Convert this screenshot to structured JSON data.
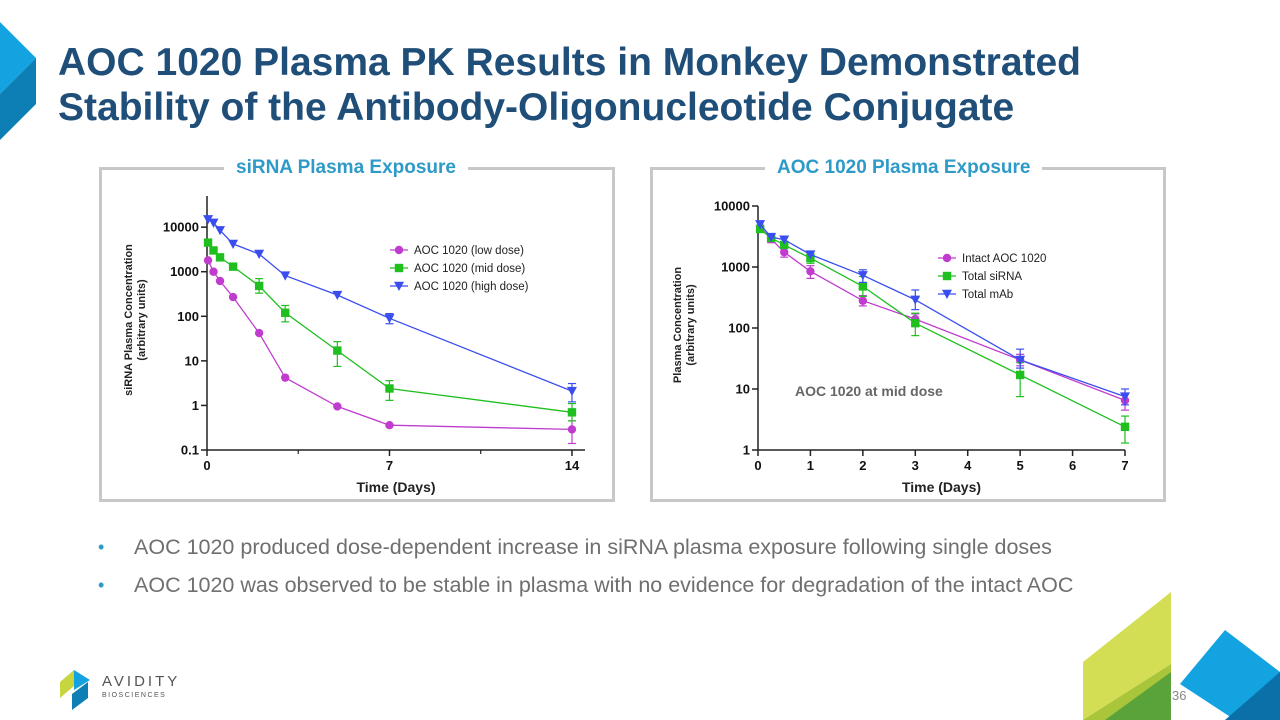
{
  "title": "AOC 1020 Plasma PK Results in Monkey Demonstrated Stability of the Antibody-Oligonucleotide Conjugate",
  "colors": {
    "title": "#1f4e79",
    "heading": "#2e9ac7",
    "low": "#c03ccf",
    "mid": "#1fbf1f",
    "high": "#3a4ef0",
    "accent_blue": "#12a3e0",
    "accent_green": "#c7d53e"
  },
  "chart_data": [
    {
      "type": "line",
      "title": "siRNA Plasma Exposure",
      "xlabel": "Time (Days)",
      "ylabel": "siRNA Plasma Concentration\n(arbitrary units)",
      "yscale": "log",
      "xlim": [
        0,
        14.5
      ],
      "ylim": [
        0.1,
        50000
      ],
      "xticks": [
        {
          "v": 0,
          "label": "0"
        },
        {
          "v": 7,
          "label": "7"
        },
        {
          "v": 14,
          "label": "14"
        }
      ],
      "xminor": [
        3.5,
        10.5
      ],
      "yticks": [
        {
          "v": 0.1,
          "label": "0.1"
        },
        {
          "v": 1,
          "label": "1"
        },
        {
          "v": 10,
          "label": "10"
        },
        {
          "v": 100,
          "label": "100"
        },
        {
          "v": 1000,
          "label": "1000"
        },
        {
          "v": 10000,
          "label": "10000"
        }
      ],
      "legend_position": "top-right",
      "series": [
        {
          "name": "AOC 1020 (low dose)",
          "marker": "circle",
          "color": "#c03ccf",
          "x": [
            0.04,
            0.25,
            0.5,
            1,
            2,
            3,
            5,
            7,
            14
          ],
          "y": [
            1800,
            1000,
            620,
            270,
            42,
            4.2,
            0.95,
            0.36,
            0.29
          ],
          "err": [
            null,
            null,
            null,
            null,
            null,
            null,
            null,
            null,
            [
              0.14,
              0.45
            ]
          ]
        },
        {
          "name": "AOC 1020 (mid dose)",
          "marker": "square",
          "color": "#1fbf1f",
          "x": [
            0.04,
            0.25,
            0.5,
            1,
            2,
            3,
            5,
            7,
            14
          ],
          "y": [
            4500,
            3000,
            2100,
            1300,
            480,
            120,
            17,
            2.4,
            0.7
          ],
          "err": [
            null,
            null,
            null,
            null,
            [
              330,
              700
            ],
            [
              75,
              175
            ],
            [
              7.5,
              27
            ],
            [
              1.3,
              3.6
            ],
            [
              0.45,
              1.1
            ]
          ]
        },
        {
          "name": "AOC 1020 (high dose)",
          "marker": "triangle-down",
          "color": "#3a4ef0",
          "x": [
            0.04,
            0.25,
            0.5,
            1,
            2,
            3,
            5,
            7,
            14
          ],
          "y": [
            15000,
            12500,
            8500,
            4200,
            2500,
            820,
            300,
            90,
            2.1
          ],
          "err": [
            null,
            null,
            null,
            null,
            null,
            null,
            null,
            [
              68,
              115
            ],
            [
              1.2,
              3.1
            ]
          ]
        }
      ]
    },
    {
      "type": "line",
      "title": "AOC 1020 Plasma Exposure",
      "xlabel": "Time (Days)",
      "ylabel": "Plasma Concentration\n(arbitrary units)",
      "yscale": "log",
      "xlim": [
        0,
        7
      ],
      "ylim": [
        1,
        10000
      ],
      "xticks": [
        {
          "v": 0,
          "label": "0"
        },
        {
          "v": 1,
          "label": "1"
        },
        {
          "v": 2,
          "label": "2"
        },
        {
          "v": 3,
          "label": "3"
        },
        {
          "v": 4,
          "label": "4"
        },
        {
          "v": 5,
          "label": "5"
        },
        {
          "v": 6,
          "label": "6"
        },
        {
          "v": 7,
          "label": "7"
        }
      ],
      "xminor": [],
      "yticks": [
        {
          "v": 1,
          "label": "1"
        },
        {
          "v": 10,
          "label": "10"
        },
        {
          "v": 100,
          "label": "100"
        },
        {
          "v": 1000,
          "label": "1000"
        },
        {
          "v": 10000,
          "label": "10000"
        }
      ],
      "legend_position": "top-right",
      "annotation": "AOC 1020 at mid dose",
      "series": [
        {
          "name": "Intact AOC 1020",
          "marker": "circle",
          "color": "#c03ccf",
          "x": [
            0.04,
            0.25,
            0.5,
            1,
            2,
            3,
            5,
            7
          ],
          "y": [
            4500,
            2900,
            1750,
            850,
            280,
            140,
            30,
            6.5
          ],
          "err": [
            null,
            [
              2500,
              3300
            ],
            [
              1450,
              2100
            ],
            [
              650,
              1050
            ],
            [
              230,
              340
            ],
            [
              115,
              170
            ],
            [
              24,
              37
            ],
            [
              4.5,
              8.5
            ]
          ]
        },
        {
          "name": "Total siRNA",
          "marker": "square",
          "color": "#1fbf1f",
          "x": [
            0.04,
            0.25,
            0.5,
            1,
            2,
            3,
            5,
            7
          ],
          "y": [
            4200,
            3000,
            2300,
            1400,
            480,
            120,
            17,
            2.4
          ],
          "err": [
            null,
            null,
            null,
            [
              1150,
              1650
            ],
            [
              330,
              700
            ],
            [
              75,
              175
            ],
            [
              7.5,
              27
            ],
            [
              1.3,
              3.6
            ]
          ]
        },
        {
          "name": "Total mAb",
          "marker": "triangle-down",
          "color": "#3a4ef0",
          "x": [
            0.04,
            0.25,
            0.5,
            1,
            2,
            3,
            5,
            7
          ],
          "y": [
            5000,
            3100,
            2800,
            1600,
            730,
            290,
            30,
            7.5
          ],
          "err": [
            null,
            null,
            null,
            null,
            [
              560,
              900
            ],
            [
              200,
              420
            ],
            [
              22,
              45
            ],
            [
              5.5,
              10
            ]
          ]
        }
      ]
    }
  ],
  "bullets": [
    "AOC 1020 produced dose-dependent increase in siRNA plasma exposure following single doses",
    "AOC 1020 was observed to be stable in plasma with no evidence for degradation of the intact AOC"
  ],
  "logo": {
    "name": "AVIDITY",
    "sub": "BIOSCIENCES"
  },
  "page_number": "36"
}
